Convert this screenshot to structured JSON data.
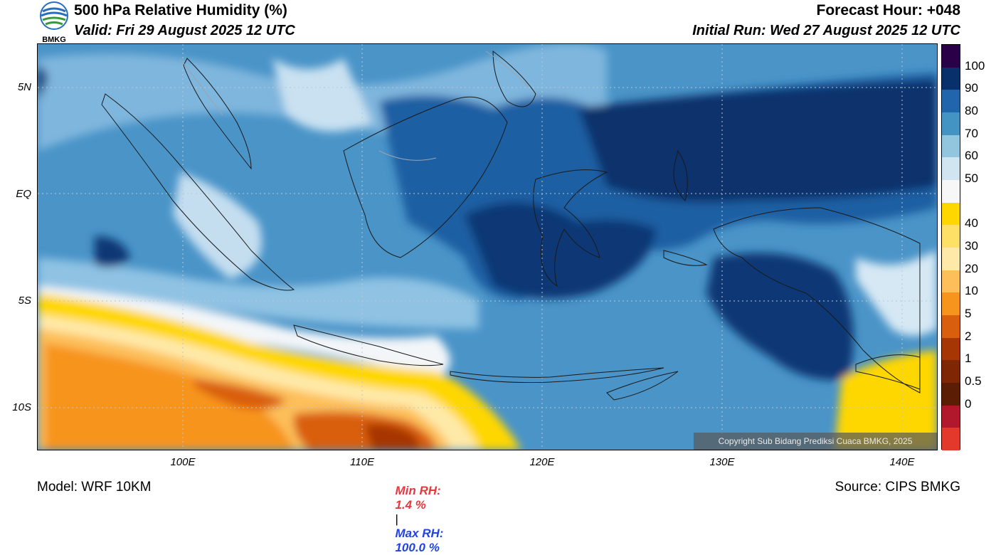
{
  "header": {
    "title": "500 hPa Relative Humidity (%)",
    "valid": "Valid: Fri 29 August 2025 12 UTC",
    "forecast_hour": "Forecast Hour: +048",
    "initial_run": "Initial Run: Wed 27 August 2025 12 UTC",
    "logo_text": "BMKG"
  },
  "axes": {
    "lat_labels": [
      "5N",
      "EQ",
      "5S",
      "10S"
    ],
    "lon_labels": [
      "100E",
      "110E",
      "120E",
      "130E",
      "140E"
    ]
  },
  "colorbar": {
    "labels": [
      "100",
      "90",
      "80",
      "70",
      "60",
      "50",
      "40",
      "30",
      "20",
      "10",
      "5",
      "2",
      "1",
      "0.5",
      "0"
    ],
    "colors": [
      "#2a0048",
      "#08306b",
      "#2166ac",
      "#4393c3",
      "#92c5de",
      "#d1e5f0",
      "#f7f7f7",
      "#ffd700",
      "#ffe066",
      "#ffe9a8",
      "#fdbf5a",
      "#f7941d",
      "#d95f0e",
      "#a63603",
      "#7f2704",
      "#5c1d05",
      "#b2182b",
      "#e3382c"
    ]
  },
  "copyright": "Copyright Sub Bidang Prediksi Cuaca BMKG, 2025",
  "stats": {
    "min_label": "Min RH:",
    "min_value": "1.4 %",
    "separator": "|",
    "max_label": "Max RH:",
    "max_value": "100.0 %"
  },
  "footer": {
    "model": "Model: WRF 10KM",
    "source": "Source: CIPS BMKG"
  }
}
